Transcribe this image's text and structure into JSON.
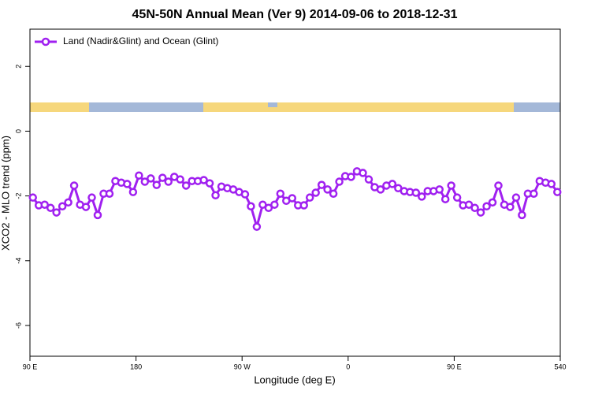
{
  "chart_data": {
    "type": "line",
    "title": "45N-50N Annual Mean (Ver 9)   2014-09-06 to 2018-12-31",
    "x_label": "Longitude (deg E)",
    "y_label": "XCO2 - MLO trend (ppm)",
    "xlim": [
      90,
      540
    ],
    "xticks": [
      {
        "value": 90,
        "label": "90 E"
      },
      180,
      {
        "value": 270,
        "label": "90 W"
      },
      {
        "value": 360,
        "label": "0"
      },
      {
        "value": 450,
        "label": "90 E"
      },
      540
    ],
    "ylim": [
      -6.95,
      3.15
    ],
    "yticks": [
      2,
      0,
      -2,
      -4,
      -6
    ],
    "grid": false,
    "legend": "top-left",
    "x": [
      92.5,
      97.5,
      102.5,
      107.5,
      112.5,
      117.5,
      122.5,
      127.5,
      132.5,
      137.5,
      142.5,
      147.5,
      152.5,
      157.5,
      162.5,
      167.5,
      172.5,
      177.5,
      182.5,
      187.5,
      192.5,
      197.5,
      202.5,
      207.5,
      212.5,
      217.5,
      222.5,
      227.5,
      232.5,
      237.5,
      242.5,
      247.5,
      252.5,
      257.5,
      262.5,
      267.5,
      272.5,
      277.5,
      282.5,
      287.5,
      292.5,
      297.5,
      302.5,
      307.5,
      312.5,
      317.5,
      322.5,
      327.5,
      332.5,
      337.5,
      342.5,
      347.5,
      352.5,
      357.5,
      362.5,
      367.5,
      372.5,
      377.5,
      382.5,
      387.5,
      392.5,
      397.5,
      402.5,
      407.5,
      412.5,
      417.5,
      422.5,
      427.5,
      432.5,
      437.5,
      442.5,
      447.5,
      452.5,
      457.5,
      462.5,
      467.5,
      472.5,
      477.5,
      482.5,
      487.5,
      492.5,
      497.5,
      502.5,
      507.5,
      512.5,
      517.5,
      522.5,
      527.5,
      532.5,
      537.5
    ],
    "series": [
      {
        "name": "Land (Nadir&Glint) and Ocean (Glint)",
        "color": "#a020f0",
        "values": [
          -2.05,
          -2.29,
          -2.27,
          -2.37,
          -2.51,
          -2.32,
          -2.2,
          -1.68,
          -2.27,
          -2.34,
          -2.05,
          -2.59,
          -1.93,
          -1.93,
          -1.54,
          -1.59,
          -1.63,
          -1.88,
          -1.37,
          -1.56,
          -1.46,
          -1.66,
          -1.44,
          -1.56,
          -1.41,
          -1.49,
          -1.68,
          -1.54,
          -1.54,
          -1.51,
          -1.61,
          -1.98,
          -1.71,
          -1.76,
          -1.8,
          -1.88,
          -1.95,
          -2.32,
          -2.95,
          -2.27,
          -2.37,
          -2.27,
          -1.93,
          -2.15,
          -2.07,
          -2.29,
          -2.29,
          -2.05,
          -1.9,
          -1.66,
          -1.8,
          -1.93,
          -1.56,
          -1.39,
          -1.41,
          -1.24,
          -1.29,
          -1.49,
          -1.73,
          -1.8,
          -1.68,
          -1.63,
          -1.76,
          -1.85,
          -1.88,
          -1.9,
          -2.02,
          -1.85,
          -1.85,
          -1.8,
          -2.1,
          -1.68,
          -2.05,
          -2.29,
          -2.27,
          -2.37,
          -2.51,
          -2.32,
          -2.2,
          -1.68,
          -2.27,
          -2.34,
          -2.05,
          -2.59,
          -1.93,
          -1.93,
          -1.54,
          -1.59,
          -1.63,
          -1.88
        ]
      }
    ]
  }
}
